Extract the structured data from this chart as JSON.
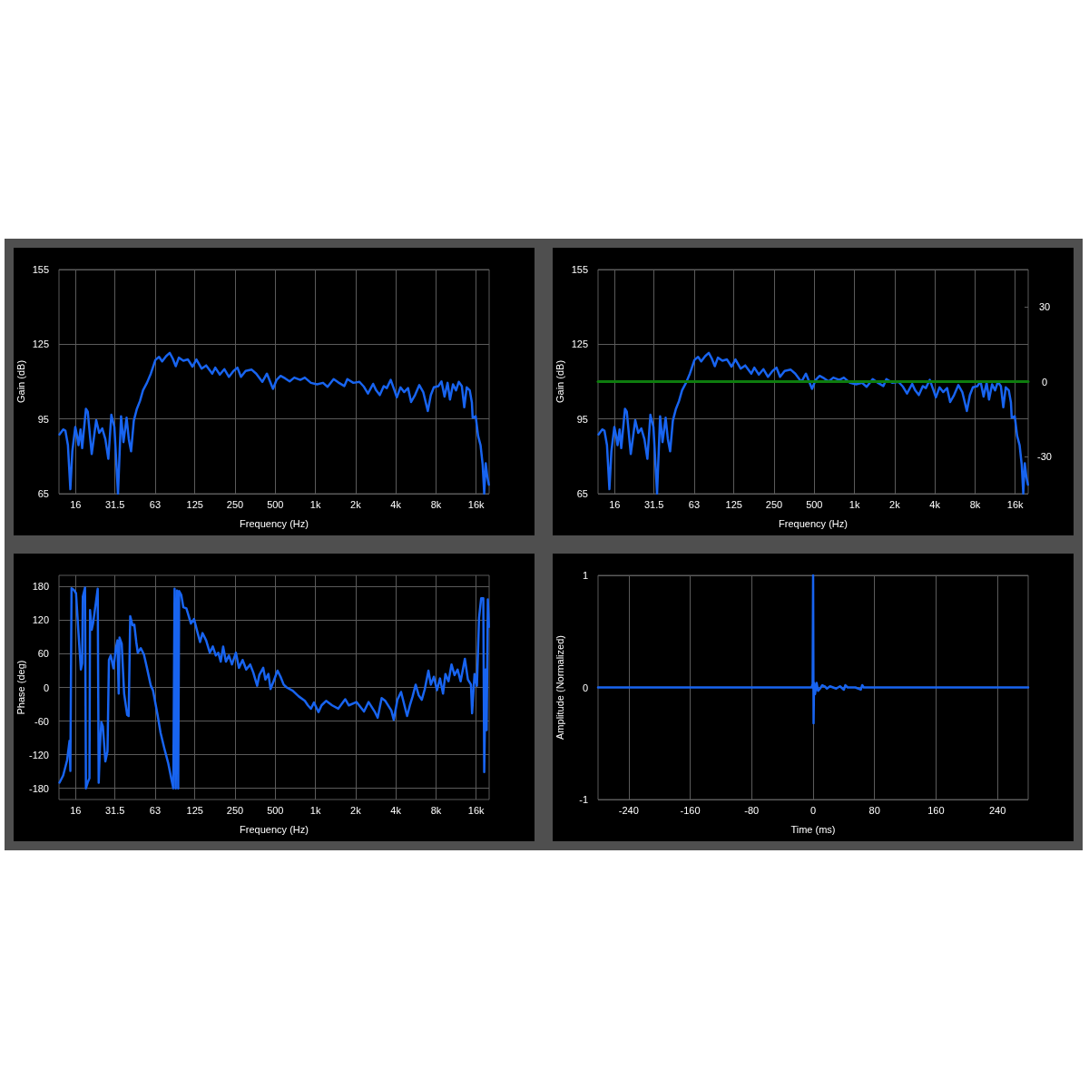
{
  "chart_data": [
    {
      "type": "line",
      "xlabel": "Frequency (Hz)",
      "ylabel": "Gain (dB)",
      "log": "x",
      "grid": true,
      "marker": "none",
      "xlim": [
        12,
        20000
      ],
      "xticks": [
        16,
        31.5,
        63,
        125,
        250,
        500,
        {
          "value": 1000,
          "label": "1k"
        },
        {
          "value": 2000,
          "label": "2k"
        },
        {
          "value": 4000,
          "label": "4k"
        },
        {
          "value": 8000,
          "label": "8k"
        },
        {
          "value": 16000,
          "label": "16k"
        }
      ],
      "ylim": [
        65,
        155
      ],
      "yticks": [
        65,
        95,
        125,
        155
      ],
      "series": [
        {
          "color": "#1864f0",
          "x": [
            12.1,
            12.9,
            13.4,
            14,
            14.6,
            15.1,
            15.9,
            16.4,
            16.8,
            17.4,
            17.9,
            19.1,
            19.7,
            21.1,
            22.8,
            24,
            25.3,
            26.7,
            28.1,
            29.6,
            31.2,
            33.2,
            35,
            36.5,
            38.5,
            40,
            41.6,
            43.6,
            46,
            48.5,
            51.1,
            54.7,
            58.5,
            63.3,
            67.4,
            71.1,
            76.1,
            81,
            85.3,
            89.9,
            94.8,
            102.5,
            110.9,
            119.9,
            128.4,
            140.4,
            151.9,
            168.7,
            177.8,
            192.3,
            208,
            225,
            243.5,
            260.5,
            277,
            300,
            333,
            360,
            400,
            433,
            481,
            512,
            548,
            593,
            641,
            694,
            770,
            833,
            925,
            1027,
            1140,
            1233,
            1369,
            1481,
            1645,
            1733,
            1924,
            2136,
            2311,
            2474,
            2704,
            2849,
            3034,
            3248,
            3423,
            3664,
            3902,
            4069,
            4333,
            4614,
            4939,
            5206,
            5572,
            5997,
            6419,
            6947,
            7317,
            7712,
            8342,
            8792,
            9264,
            9768,
            10180,
            10728,
            11300,
            11845,
            12485,
            13020,
            13580,
            14310,
            14850,
            15050,
            15860,
            16530,
            17240,
            17890,
            18370,
            18850,
            19350,
            19900
          ],
          "values": [
            88.8,
            90.8,
            90.3,
            84.5,
            66.8,
            82,
            91.8,
            88.1,
            84.5,
            90.8,
            83.3,
            99.1,
            97.9,
            80.9,
            94.5,
            89.4,
            91.2,
            86.9,
            79,
            96.7,
            91.8,
            65,
            96.1,
            85.7,
            95.5,
            86.9,
            82,
            94.3,
            99.1,
            102.2,
            106.5,
            109.5,
            113.2,
            118.7,
            119.9,
            118.1,
            120.2,
            121.5,
            119.3,
            116.2,
            119.6,
            118.4,
            118.9,
            116,
            118.9,
            115.2,
            116.5,
            113.2,
            115.6,
            112.8,
            115,
            111.9,
            114.3,
            115.6,
            111.9,
            114.3,
            114.8,
            113.2,
            109.9,
            113.2,
            107.1,
            110.7,
            112.3,
            111.3,
            110.1,
            111.6,
            110.7,
            111.6,
            109.5,
            108.9,
            109.5,
            107.9,
            111,
            109.7,
            108.2,
            111,
            109.5,
            109.9,
            107.9,
            105.2,
            109.1,
            106.5,
            104.6,
            108.2,
            107.4,
            110.7,
            106.6,
            103.7,
            107.7,
            105.8,
            107.4,
            101.8,
            104.6,
            108.6,
            105.8,
            98.2,
            104.6,
            107.7,
            108.2,
            110.1,
            104,
            109.5,
            102.8,
            108.9,
            106.5,
            109.9,
            108.2,
            99.7,
            107.7,
            106.5,
            101.6,
            95.5,
            96.1,
            88.2,
            84.5,
            76.6,
            65,
            77.2,
            72,
            68.6
          ]
        }
      ]
    },
    {
      "type": "line",
      "xlabel": "Frequency (Hz)",
      "ylabel": "Gain (dB)",
      "log": "x",
      "grid": true,
      "marker": "none",
      "xlim": [
        12,
        20000
      ],
      "xticks": [
        16,
        31.5,
        63,
        125,
        250,
        500,
        {
          "value": 1000,
          "label": "1k"
        },
        {
          "value": 2000,
          "label": "2k"
        },
        {
          "value": 4000,
          "label": "4k"
        },
        {
          "value": 8000,
          "label": "8k"
        },
        {
          "value": 16000,
          "label": "16k"
        }
      ],
      "ylim": [
        65,
        155
      ],
      "yticks": [
        65,
        95,
        125,
        155
      ],
      "y2lim": [
        -45,
        45
      ],
      "y2ticks": [
        -30,
        0,
        30
      ],
      "series": [
        {
          "color": "#1864f0",
          "x": [
            12.1,
            12.9,
            13.4,
            14,
            14.6,
            15.1,
            15.9,
            16.4,
            16.8,
            17.4,
            17.9,
            19.1,
            19.7,
            21.1,
            22.8,
            24,
            25.3,
            26.7,
            28.1,
            29.6,
            31.2,
            33.2,
            35,
            36.5,
            38.5,
            40,
            41.6,
            43.6,
            46,
            48.5,
            51.1,
            54.7,
            58.5,
            63.3,
            67.4,
            71.1,
            76.1,
            81,
            85.3,
            89.9,
            94.8,
            102.5,
            110.9,
            119.9,
            128.4,
            140.4,
            151.9,
            168.7,
            177.8,
            192.3,
            208,
            225,
            243.5,
            260.5,
            277,
            300,
            333,
            360,
            400,
            433,
            481,
            512,
            548,
            593,
            641,
            694,
            770,
            833,
            925,
            1027,
            1140,
            1233,
            1369,
            1481,
            1645,
            1733,
            1924,
            2136,
            2311,
            2474,
            2704,
            2849,
            3034,
            3248,
            3423,
            3664,
            3902,
            4069,
            4333,
            4614,
            4939,
            5206,
            5572,
            5997,
            6419,
            6947,
            7317,
            7712,
            8342,
            8792,
            9264,
            9768,
            10180,
            10728,
            11300,
            11845,
            12485,
            13020,
            13580,
            14310,
            14850,
            15050,
            15860,
            16530,
            17240,
            17890,
            18370,
            18850,
            19350,
            19900
          ],
          "values": [
            88.8,
            90.8,
            90.3,
            84.5,
            66.8,
            82,
            91.8,
            88.1,
            84.5,
            90.8,
            83.3,
            99.1,
            97.9,
            80.9,
            94.5,
            89.4,
            91.2,
            86.9,
            79,
            96.7,
            91.8,
            65,
            96.1,
            85.7,
            95.5,
            86.9,
            82,
            94.3,
            99.1,
            102.2,
            106.5,
            109.5,
            113.2,
            118.7,
            119.9,
            118.1,
            120.2,
            121.5,
            119.3,
            116.2,
            119.6,
            118.4,
            118.9,
            116,
            118.9,
            115.2,
            116.5,
            113.2,
            115.6,
            112.8,
            115,
            111.9,
            114.3,
            115.6,
            111.9,
            114.3,
            114.8,
            113.2,
            109.9,
            113.2,
            107.1,
            110.7,
            112.3,
            111.3,
            110.1,
            111.6,
            110.7,
            111.6,
            109.5,
            108.9,
            109.5,
            107.9,
            111,
            109.7,
            108.2,
            111,
            109.5,
            109.9,
            107.9,
            105.2,
            109.1,
            106.5,
            104.6,
            108.2,
            107.4,
            110.7,
            106.6,
            103.7,
            107.7,
            105.8,
            107.4,
            101.8,
            104.6,
            108.6,
            105.8,
            98.2,
            104.6,
            107.7,
            108.2,
            110.1,
            104,
            109.5,
            102.8,
            108.9,
            106.5,
            109.9,
            108.2,
            99.7,
            107.7,
            106.5,
            101.6,
            95.5,
            96.1,
            88.2,
            84.5,
            76.6,
            65,
            77.2,
            72,
            68.6
          ]
        },
        {
          "color": "#0e7c0e",
          "axis": "y2",
          "x": [
            12,
            20000
          ],
          "values": [
            0,
            0
          ]
        }
      ]
    },
    {
      "type": "line",
      "xlabel": "Frequency (Hz)",
      "ylabel": "Phase (deg)",
      "log": "x",
      "grid": true,
      "marker": "none",
      "xlim": [
        12,
        20000
      ],
      "xticks": [
        16,
        31.5,
        63,
        125,
        250,
        500,
        {
          "value": 1000,
          "label": "1k"
        },
        {
          "value": 2000,
          "label": "2k"
        },
        {
          "value": 4000,
          "label": "4k"
        },
        {
          "value": 8000,
          "label": "8k"
        },
        {
          "value": 16000,
          "label": "16k"
        }
      ],
      "ylim": [
        -200,
        200
      ],
      "yticks": [
        -180,
        -120,
        -60,
        0,
        60,
        120,
        180
      ],
      "series": [
        {
          "color": "#1864f0",
          "x": [
            12.1,
            12.9,
            13.8,
            14.4,
            14.6,
            14.9,
            15.5,
            16.1,
            16.8,
            17.5,
            17.9,
            18.1,
            18.8,
            19.1,
            19.8,
            20.3,
            20.5,
            21.1,
            21.6,
            23.4,
            23.8,
            24.3,
            24.9,
            25.6,
            26.7,
            27.7,
            28.4,
            29.3,
            30.7,
            32,
            32.9,
            33.6,
            34.1,
            35.4,
            36.9,
            38.9,
            39.9,
            41,
            42.7,
            44,
            45.5,
            46.7,
            49.2,
            51.9,
            54.7,
            58.5,
            60.7,
            65.7,
            69.2,
            73.7,
            78.9,
            83.1,
            86.2,
            88.1,
            89.9,
            91.8,
            93.8,
            95.3,
            98.9,
            102.5,
            108,
            116.8,
            123.2,
            131.2,
            136.7,
            142.6,
            151.8,
            161.7,
            170.4,
            179.5,
            187.2,
            195.3,
            203.6,
            213.5,
            224.9,
            237,
            253.7,
            267.4,
            284.7,
            303.2,
            324.5,
            342,
            366,
            379.7,
            406.4,
            421.7,
            444.5,
            460.9,
            485.9,
            520,
            548,
            578,
            609,
            676,
            750,
            833,
            878,
            925,
            975,
            1054,
            1111,
            1202,
            1334,
            1481,
            1671,
            1779,
            2029,
            2311,
            2501,
            2776,
            2926,
            3133,
            3336,
            3702,
            3860,
            4112,
            4379,
            4861,
            5124,
            5344,
            5632,
            5936,
            6256,
            6592,
            7019,
            7317,
            7712,
            8128,
            8568,
            9030,
            9410,
            9920,
            10450,
            11010,
            11610,
            12230,
            13160,
            13870,
            14620,
            14900,
            15550,
            16200,
            16800,
            17430,
            18080,
            18370,
            18850,
            19160,
            19560,
            19900
          ],
          "values": [
            -170,
            -157,
            -130,
            -95,
            -149,
            177,
            174,
            168,
            97,
            32,
            43,
            162,
            178,
            -180,
            -168,
            -162,
            138,
            103,
            114,
            176,
            -170,
            -108,
            -62,
            -70,
            -132,
            -114,
            49,
            57,
            34,
            70,
            84,
            -11,
            89,
            78,
            -11,
            -49,
            -51,
            127,
            111,
            112,
            81,
            62,
            70,
            59,
            35,
            3,
            -5,
            -49,
            -81,
            -108,
            -135,
            -162,
            -180,
            176,
            -180,
            173,
            -180,
            172,
            165,
            143,
            141,
            114,
            122,
            97,
            81,
            97,
            84,
            62,
            73,
            57,
            62,
            46,
            73,
            46,
            57,
            41,
            62,
            35,
            49,
            32,
            41,
            27,
            3,
            22,
            35,
            14,
            24,
            -3,
            11,
            30,
            19,
            5,
            0,
            -6,
            -16,
            -24,
            -32,
            -38,
            -27,
            -44,
            -32,
            -24,
            -32,
            -38,
            -21,
            -32,
            -26,
            -43,
            -26,
            -43,
            -54,
            -19,
            -24,
            -41,
            -58,
            -22,
            -8,
            -51,
            -30,
            -16,
            5,
            -14,
            -22,
            -3,
            30,
            5,
            19,
            -5,
            16,
            -11,
            24,
            11,
            41,
            22,
            32,
            11,
            51,
            14,
            5,
            -46,
            24,
            3,
            124,
            159,
            159,
            -151,
            32,
            -76,
            157,
            108
          ]
        }
      ]
    },
    {
      "type": "line",
      "xlabel": "Time (ms)",
      "ylabel": "Amplitude (Normalized)",
      "grid": true,
      "marker": "none",
      "xlim": [
        -280,
        280
      ],
      "xticks": [
        -240,
        -160,
        -80,
        0,
        80,
        160,
        240
      ],
      "ylim": [
        -1,
        1
      ],
      "yticks": [
        -1,
        0,
        1
      ],
      "series": [
        {
          "color": "#1864f0",
          "x": [
            -280,
            -2,
            -0.6,
            0,
            0.6,
            1.2,
            2.5,
            4.5,
            6.5,
            9,
            12,
            15,
            18,
            22,
            26,
            30,
            35,
            40,
            42,
            45,
            55,
            62,
            64,
            66,
            75,
            280
          ],
          "values": [
            0,
            0,
            0.03,
            1,
            -0.32,
            0.04,
            -0.06,
            0.04,
            -0.03,
            -0.01,
            0.02,
            0.01,
            -0.01,
            0.01,
            0,
            -0.01,
            0.01,
            -0.02,
            0.02,
            0,
            0,
            -0.02,
            0.02,
            0,
            0,
            0
          ]
        }
      ]
    }
  ]
}
